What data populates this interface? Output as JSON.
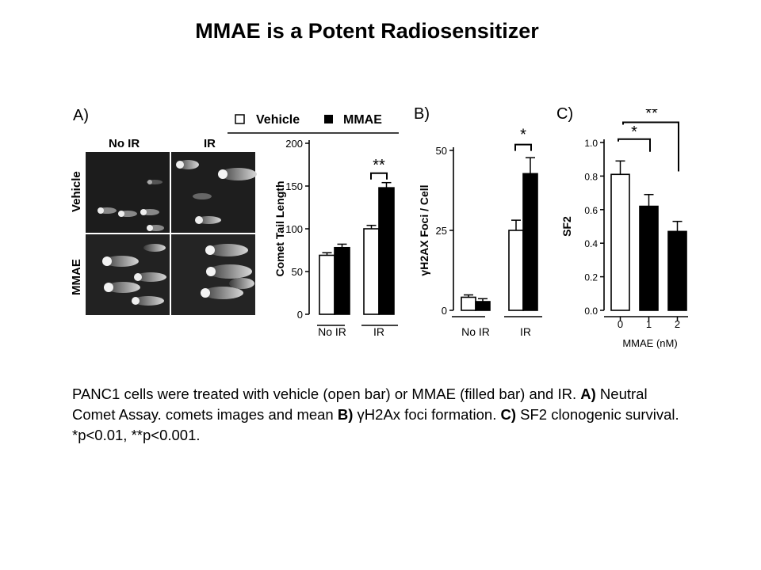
{
  "title": "MMAE is a Potent Radiosensitizer",
  "panels": {
    "a": "A)",
    "b": "B)",
    "c": "C)"
  },
  "legend": {
    "vehicle": "Vehicle",
    "mmae": "MMAE"
  },
  "micrographs": {
    "col_no_ir": "No IR",
    "col_ir": "IR",
    "row_vehicle": "Vehicle",
    "row_mmae": "MMAE"
  },
  "colors": {
    "open_bar": "#ffffff",
    "filled_bar": "#000000"
  },
  "chart_data": [
    {
      "type": "bar",
      "categories": [
        "No IR",
        "IR"
      ],
      "series": [
        {
          "name": "Vehicle",
          "values": [
            69,
            100
          ],
          "errors": [
            3,
            4
          ]
        },
        {
          "name": "MMAE",
          "values": [
            78,
            148
          ],
          "errors": [
            4,
            6
          ]
        }
      ],
      "ylabel": "Comet Tail Length",
      "ylim": [
        0,
        200
      ],
      "yticks": [
        "0",
        "50",
        "100",
        "150",
        "200"
      ],
      "significance": "**"
    },
    {
      "type": "bar",
      "categories": [
        "No IR",
        "IR"
      ],
      "series": [
        {
          "name": "Vehicle",
          "values": [
            4.5,
            27.5
          ],
          "errors": [
            0.8,
            3.5
          ]
        },
        {
          "name": "MMAE",
          "values": [
            3,
            47
          ],
          "errors": [
            1,
            5.5
          ]
        }
      ],
      "ylabel": "γH2AX Foci / Cell",
      "ylim": [
        0,
        55
      ],
      "yticks": [
        "0",
        "25",
        "50"
      ],
      "significance": "*"
    },
    {
      "type": "bar",
      "categories": [
        "0",
        "1",
        "2"
      ],
      "values": [
        0.81,
        0.62,
        0.47
      ],
      "errors": [
        0.08,
        0.07,
        0.06
      ],
      "fills": [
        "open",
        "filled",
        "filled"
      ],
      "xlabel": "MMAE (nM)",
      "ylabel": "SF2",
      "ylim": [
        0,
        1.0
      ],
      "yticks": [
        "0.0",
        "0.2",
        "0.4",
        "0.6",
        "0.8",
        "1.0"
      ],
      "significance": [
        "*",
        "**"
      ]
    }
  ],
  "caption": {
    "p1": "PANC1 cells were treated with vehicle (open bar) or MMAE (filled bar) and IR. ",
    "a_label": "A)",
    "p2": " Neutral Comet Assay. comets images and mean ",
    "b_label": "B)",
    "p3": " γH2Ax foci formation. ",
    "c_label": "C)",
    "p4": " SF2 clonogenic survival. *p<0.01, **p<0.001."
  }
}
